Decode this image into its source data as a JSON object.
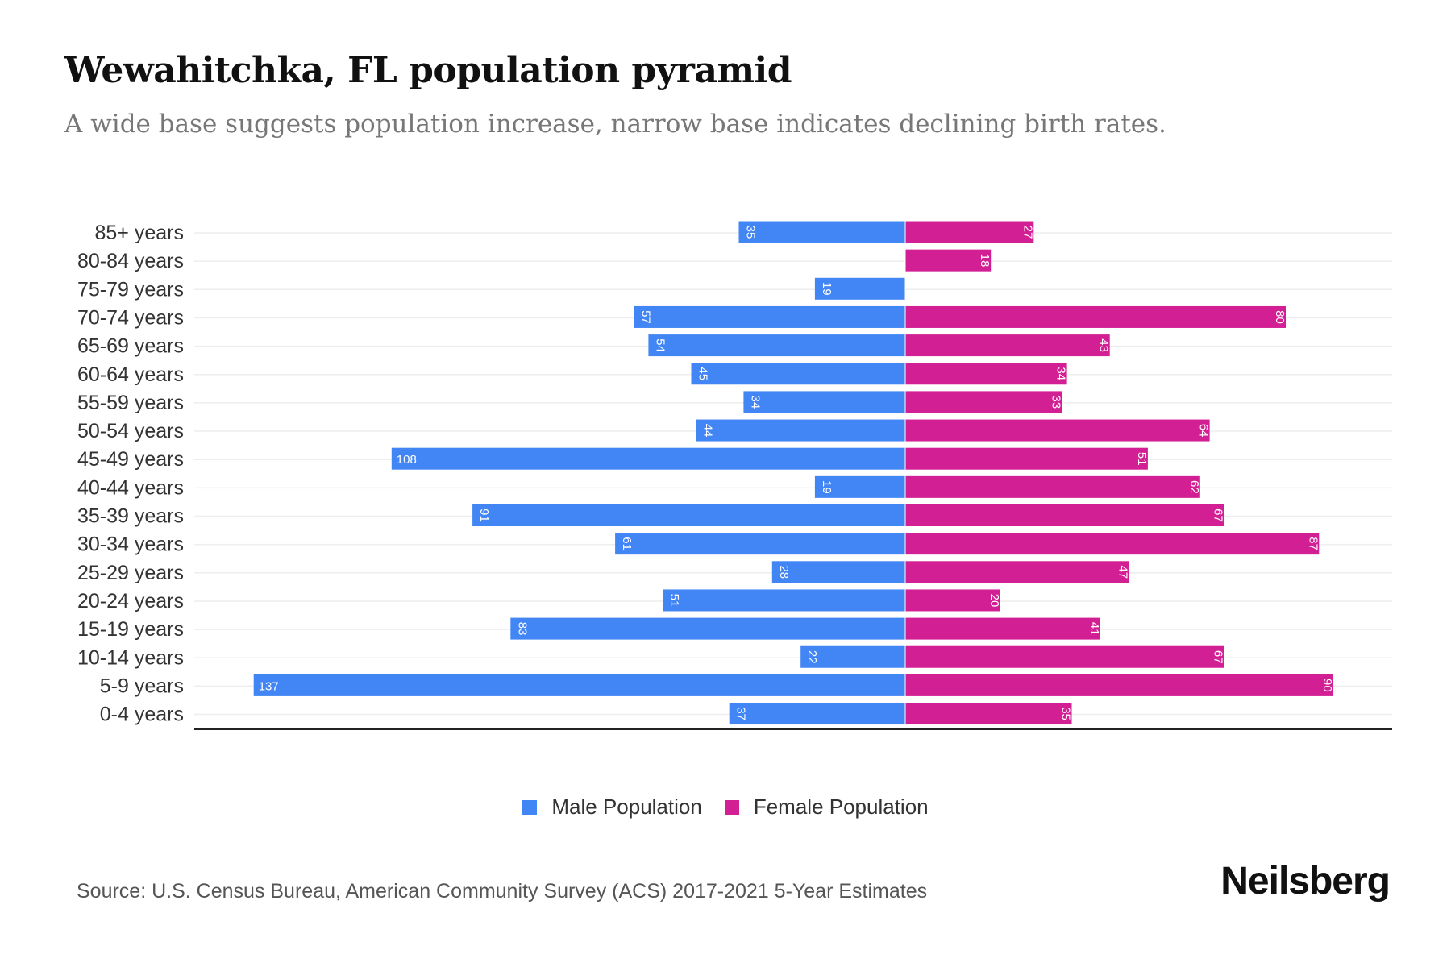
{
  "title": "Wewahitchka, FL population pyramid",
  "subtitle": "A wide base suggests population increase, narrow base indicates declining birth rates.",
  "source": "Source: U.S. Census Bureau, American Community Survey (ACS) 2017-2021 5-Year Estimates",
  "logo": "Neilsberg",
  "colors": {
    "male": "#4285f4",
    "female": "#d31f94"
  },
  "chart_data": {
    "type": "bar",
    "orientation": "horizontal-pyramid",
    "categories": [
      "85+ years",
      "80-84 years",
      "75-79 years",
      "70-74 years",
      "65-69 years",
      "60-64 years",
      "55-59 years",
      "50-54 years",
      "45-49 years",
      "40-44 years",
      "35-39 years",
      "30-34 years",
      "25-29 years",
      "20-24 years",
      "15-19 years",
      "10-14 years",
      "5-9 years",
      "0-4 years"
    ],
    "series": [
      {
        "name": "Male Population",
        "values": [
          35,
          0,
          19,
          57,
          54,
          45,
          34,
          44,
          108,
          19,
          91,
          61,
          28,
          51,
          83,
          22,
          137,
          37
        ]
      },
      {
        "name": "Female Population",
        "values": [
          27,
          18,
          0,
          80,
          43,
          34,
          33,
          64,
          51,
          62,
          67,
          87,
          47,
          20,
          41,
          67,
          90,
          35
        ]
      }
    ],
    "legend": "bottom-center",
    "grid": true
  }
}
